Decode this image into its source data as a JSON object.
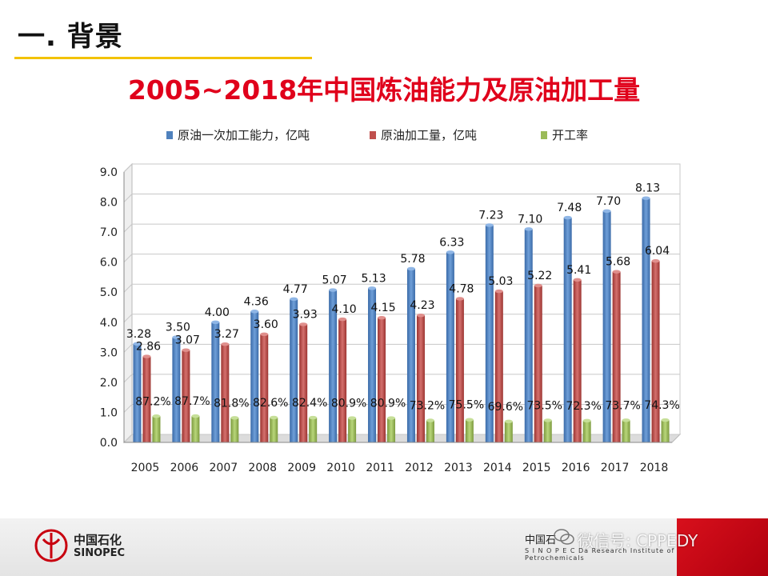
{
  "slide": {
    "section_title": "一. 背景",
    "chart_title": "2005~2018年中国炼油能力及原油加工量"
  },
  "footer": {
    "brand_cn": "中国石化",
    "brand_en": "SINOPEC",
    "org_cn": "中国石",
    "org_en": "S I N O P E C  Da    Research Institute of Petroleum and Petrochemicals",
    "watermark": "微信号: CPPEDY"
  },
  "colors": {
    "capacity": "#4f81bd",
    "processing": "#c0504d",
    "utilization": "#9bbb59",
    "title": "#e0001b",
    "rule": "#f2c200"
  },
  "chart_data": {
    "type": "bar",
    "title": "2005~2018年中国炼油能力及原油加工量",
    "categories": [
      "2005",
      "2006",
      "2007",
      "2008",
      "2009",
      "2010",
      "2011",
      "2012",
      "2013",
      "2014",
      "2015",
      "2016",
      "2017",
      "2018"
    ],
    "series": [
      {
        "name": "原油一次加工能力，亿吨",
        "values": [
          3.28,
          3.5,
          4.0,
          4.36,
          4.77,
          5.07,
          5.13,
          5.78,
          6.33,
          7.23,
          7.1,
          7.48,
          7.7,
          8.13
        ],
        "labels": [
          "3.28",
          "3.50",
          "4.00",
          "4.36",
          "4.77",
          "5.07",
          "5.13",
          "5.78",
          "6.33",
          "7.23",
          "7.10",
          "7.48",
          "7.70",
          "8.13"
        ]
      },
      {
        "name": "原油加工量，亿吨",
        "values": [
          2.86,
          3.07,
          3.27,
          3.6,
          3.93,
          4.1,
          4.15,
          4.23,
          4.78,
          5.03,
          5.22,
          5.41,
          5.68,
          6.04
        ],
        "labels": [
          "2.86",
          "3.07",
          "3.27",
          "3.60",
          "3.93",
          "4.10",
          "4.15",
          "4.23",
          "4.78",
          "5.03",
          "5.22",
          "5.41",
          "5.68",
          "6.04"
        ]
      },
      {
        "name": "开工率",
        "values": [
          0.872,
          0.877,
          0.818,
          0.826,
          0.824,
          0.809,
          0.809,
          0.732,
          0.755,
          0.696,
          0.735,
          0.723,
          0.737,
          0.743
        ],
        "labels": [
          "87.2%",
          "87.7%",
          "81.8%",
          "82.6%",
          "82.4%",
          "80.9%",
          "80.9%",
          "73.2%",
          "75.5%",
          "69.6%",
          "73.5%",
          "72.3%",
          "73.7%",
          "74.3%"
        ]
      }
    ],
    "ylim": [
      0,
      9
    ],
    "yticks": [
      "0.0",
      "1.0",
      "2.0",
      "3.0",
      "4.0",
      "5.0",
      "6.0",
      "7.0",
      "8.0",
      "9.0"
    ],
    "grid": true,
    "legend": "top"
  }
}
